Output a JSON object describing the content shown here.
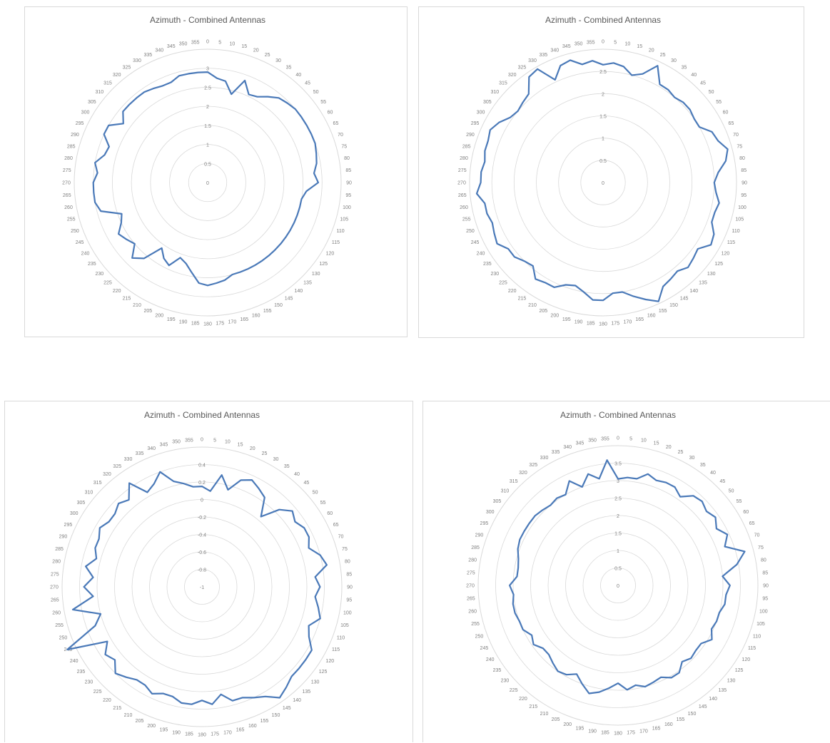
{
  "chart_data": [
    {
      "type": "radar",
      "title": "Azimuth - Combined Antennas",
      "angles": [
        0,
        5,
        10,
        15,
        20,
        25,
        30,
        35,
        40,
        45,
        50,
        55,
        60,
        65,
        70,
        75,
        80,
        85,
        90,
        95,
        100,
        105,
        110,
        115,
        120,
        125,
        130,
        135,
        140,
        145,
        150,
        155,
        160,
        165,
        170,
        175,
        180,
        185,
        190,
        195,
        200,
        205,
        210,
        215,
        220,
        225,
        230,
        235,
        240,
        245,
        250,
        255,
        260,
        265,
        270,
        275,
        280,
        285,
        290,
        295,
        300,
        305,
        310,
        315,
        320,
        325,
        330,
        335,
        340,
        345,
        350,
        355
      ],
      "radial_ticks": [
        "0",
        "0.5",
        "1",
        "1.5",
        "2",
        "2.5",
        "3"
      ],
      "rlim": [
        0,
        3.5
      ],
      "grid": true,
      "series": [
        {
          "values": [
            2.9,
            2.75,
            2.7,
            2.4,
            2.85,
            2.55,
            2.6,
            2.75,
            2.9,
            2.95,
            3.0,
            3.0,
            3.0,
            3.0,
            3.0,
            2.95,
            2.9,
            2.8,
            2.9,
            2.6,
            2.5,
            2.5,
            2.5,
            2.5,
            2.5,
            2.5,
            2.5,
            2.5,
            2.5,
            2.5,
            2.5,
            2.5,
            2.5,
            2.5,
            2.6,
            2.65,
            2.7,
            2.65,
            2.4,
            2.2,
            2.1,
            2.4,
            2.3,
            2.1,
            2.6,
            2.8,
            2.5,
            2.6,
            2.7,
            2.5,
            2.4,
            2.9,
            3.0,
            3.0,
            3.0,
            2.9,
            3.0,
            2.8,
            2.75,
            3.0,
            3.0,
            2.7,
            2.9,
            2.9,
            2.9,
            2.9,
            2.85,
            2.8,
            2.8,
            2.9,
            2.9,
            2.9
          ]
        }
      ]
    },
    {
      "type": "radar",
      "title": "Azimuth - Combined Antennas",
      "angles": [
        0,
        5,
        10,
        15,
        20,
        25,
        30,
        35,
        40,
        45,
        50,
        55,
        60,
        65,
        70,
        75,
        80,
        85,
        90,
        95,
        100,
        105,
        110,
        115,
        120,
        125,
        130,
        135,
        140,
        145,
        150,
        155,
        160,
        165,
        170,
        175,
        180,
        185,
        190,
        195,
        200,
        205,
        210,
        215,
        220,
        225,
        230,
        235,
        240,
        245,
        250,
        255,
        260,
        265,
        270,
        275,
        280,
        285,
        290,
        295,
        300,
        305,
        310,
        315,
        320,
        325,
        330,
        335,
        340,
        345,
        350,
        355
      ],
      "radial_ticks": [
        "0",
        "0.5",
        "1",
        "1.5",
        "2",
        "2.5"
      ],
      "rlim": [
        0,
        3.0
      ],
      "grid": true,
      "series": [
        {
          "values": [
            2.65,
            2.7,
            2.65,
            2.5,
            2.6,
            2.9,
            2.55,
            2.55,
            2.5,
            2.55,
            2.55,
            2.5,
            2.5,
            2.7,
            2.75,
            2.9,
            2.8,
            2.6,
            2.5,
            2.55,
            2.65,
            2.6,
            2.6,
            2.75,
            2.8,
            2.6,
            2.65,
            2.7,
            2.6,
            2.65,
            2.7,
            2.95,
            2.8,
            2.65,
            2.5,
            2.5,
            2.65,
            2.65,
            2.5,
            2.4,
            2.45,
            2.6,
            2.6,
            2.65,
            2.45,
            2.5,
            2.6,
            2.6,
            2.75,
            2.7,
            2.65,
            2.7,
            2.7,
            2.85,
            2.75,
            2.75,
            2.7,
            2.75,
            2.75,
            2.8,
            2.7,
            2.55,
            2.5,
            2.55,
            2.6,
            2.9,
            2.95,
            2.55,
            2.8,
            2.85,
            2.7,
            2.75
          ]
        }
      ]
    },
    {
      "type": "radar",
      "title": "Azimuth - Combined Antennas",
      "angles": [
        0,
        5,
        10,
        15,
        20,
        25,
        30,
        35,
        40,
        45,
        50,
        55,
        60,
        65,
        70,
        75,
        80,
        85,
        90,
        95,
        100,
        105,
        110,
        115,
        120,
        125,
        130,
        135,
        140,
        145,
        150,
        155,
        160,
        165,
        170,
        175,
        180,
        185,
        190,
        195,
        200,
        205,
        210,
        215,
        220,
        225,
        230,
        235,
        240,
        245,
        250,
        255,
        260,
        265,
        270,
        275,
        280,
        285,
        290,
        295,
        300,
        305,
        310,
        315,
        320,
        325,
        330,
        335,
        340,
        345,
        350,
        355
      ],
      "radial_ticks": [
        "-1",
        "-0.8",
        "-0.6",
        "-0.4",
        "-0.2",
        "0",
        "0.2",
        "0.4"
      ],
      "rlim": [
        -1,
        0.6
      ],
      "grid": true,
      "series": [
        {
          "values": [
            0.15,
            0.1,
            0.3,
            0.15,
            0.3,
            0.35,
            0.3,
            0.25,
            0.05,
            0.25,
            0.35,
            0.3,
            0.35,
            0.35,
            0.3,
            0.4,
            0.45,
            0.3,
            0.35,
            0.3,
            0.35,
            0.4,
            0.3,
            0.35,
            0.45,
            0.45,
            0.45,
            0.45,
            0.5,
            0.55,
            0.45,
            0.4,
            0.35,
            0.35,
            0.25,
            0.35,
            0.3,
            0.35,
            0.35,
            0.3,
            0.3,
            0.35,
            0.3,
            0.3,
            0.35,
            0.4,
            0.3,
            0.35,
            0.25,
            0.7,
            0.3,
            0.2,
            0.5,
            0.25,
            0.35,
            0.25,
            0.35,
            0.25,
            0.3,
            0.3,
            0.35,
            0.3,
            0.3,
            0.35,
            0.3,
            0.45,
            0.25,
            0.3,
            0.4,
            0.25,
            0.2,
            0.15
          ]
        }
      ]
    },
    {
      "type": "radar",
      "title": "Azimuth - Combined Antennas",
      "angles": [
        0,
        5,
        10,
        15,
        20,
        25,
        30,
        35,
        40,
        45,
        50,
        55,
        60,
        65,
        70,
        75,
        80,
        85,
        90,
        95,
        100,
        105,
        110,
        115,
        120,
        125,
        130,
        135,
        140,
        145,
        150,
        155,
        160,
        165,
        170,
        175,
        180,
        185,
        190,
        195,
        200,
        205,
        210,
        215,
        220,
        225,
        230,
        235,
        240,
        245,
        250,
        255,
        260,
        265,
        270,
        275,
        280,
        285,
        290,
        295,
        300,
        305,
        310,
        315,
        320,
        325,
        330,
        335,
        340,
        345,
        350,
        355
      ],
      "radial_ticks": [
        "0",
        "0.5",
        "1",
        "1.5",
        "2",
        "2.5",
        "3",
        "3.5"
      ],
      "rlim": [
        0,
        4.0
      ],
      "grid": true,
      "series": [
        {
          "values": [
            3.05,
            3.1,
            3.1,
            3.3,
            3.2,
            3.25,
            3.25,
            3.1,
            3.35,
            3.4,
            3.3,
            3.4,
            3.25,
            3.45,
            3.25,
            3.75,
            3.45,
            3.0,
            3.2,
            3.1,
            3.1,
            3.0,
            3.0,
            2.95,
            3.1,
            2.9,
            2.9,
            2.95,
            2.85,
            3.05,
            3.05,
            2.9,
            2.95,
            3.0,
            2.9,
            3.0,
            2.8,
            2.95,
            3.1,
            3.2,
            3.0,
            2.8,
            2.95,
            3.0,
            2.9,
            2.8,
            2.8,
            2.95,
            2.85,
            3.0,
            3.0,
            3.05,
            3.05,
            3.0,
            3.1,
            2.9,
            2.9,
            2.95,
            3.05,
            3.1,
            3.1,
            3.1,
            3.1,
            3.05,
            3.0,
            3.05,
            3.0,
            3.3,
            3.0,
            3.3,
            3.1,
            3.6
          ]
        }
      ]
    }
  ],
  "colors": {
    "series_line": "#4a79b8",
    "grid_line": "#d9d9d9",
    "label_text": "#7f7f7f",
    "title_text": "#595959"
  }
}
